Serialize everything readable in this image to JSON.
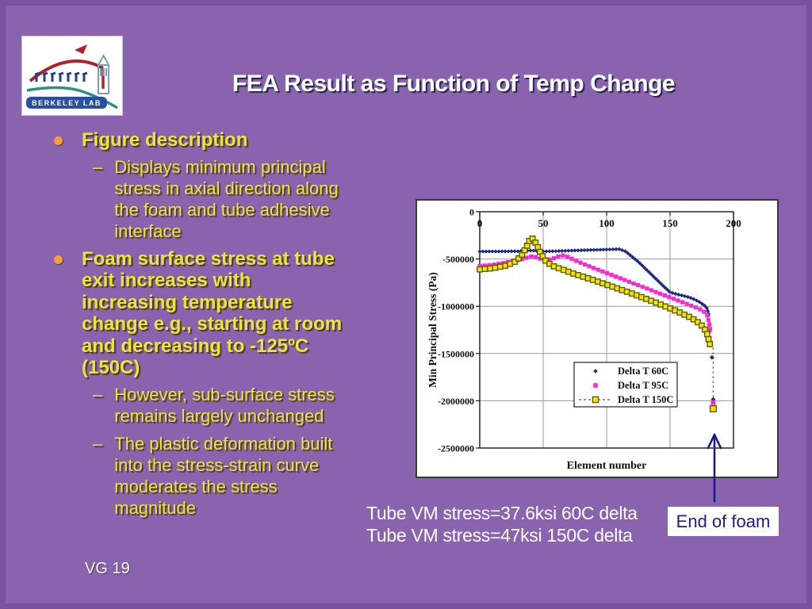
{
  "slide": {
    "title": "FEA Result as Function of Temp Change",
    "footer": "VG 19",
    "logo": {
      "label": "BERKELEY LAB"
    },
    "bullet_markers": {
      "dash": "–"
    },
    "bullets": [
      {
        "level": 1,
        "text": "Figure description"
      },
      {
        "level": 2,
        "text": "Displays minimum principal stress in axial direction along the foam and tube adhesive interface"
      },
      {
        "level": 1,
        "text": "Foam surface stress at tube exit increases with increasing temperature change e.g., starting at room and decreasing to -125ºC (150C)"
      },
      {
        "level": 2,
        "text": "However, sub-surface stress remains largely unchanged"
      },
      {
        "level": 2,
        "text": "The plastic deformation built into the stress-strain curve moderates the stress magnitude"
      }
    ],
    "captions": {
      "line1": "Tube VM stress=37.6ksi 60C delta",
      "line2": "Tube VM stress=47ksi 150C delta",
      "callout": "End of foam"
    }
  },
  "chart_data": {
    "type": "line",
    "title": "",
    "xlabel": "Element number",
    "ylabel": "Min Principal Stress (Pa)",
    "xlim": [
      0,
      200
    ],
    "ylim": [
      -2500000,
      0
    ],
    "xticks": [
      0,
      50,
      100,
      150,
      200
    ],
    "yticks": [
      0,
      -500000,
      -1000000,
      -1500000,
      -2000000,
      -2500000
    ],
    "grid": true,
    "legend_position": "inside-center-right",
    "colors": {
      "grid": "#9a9a9a",
      "axis": "#1a1a1a",
      "drop_dash": "#444444"
    },
    "series": [
      {
        "name": "Delta T 60C",
        "color": "#1c2c82",
        "marker": "diamond",
        "points": [
          [
            0,
            -420000
          ],
          [
            15,
            -420000
          ],
          [
            30,
            -418000
          ],
          [
            40,
            -410000
          ],
          [
            50,
            -420000
          ],
          [
            60,
            -417000
          ],
          [
            75,
            -410000
          ],
          [
            90,
            -404000
          ],
          [
            105,
            -398000
          ],
          [
            110,
            -395000
          ],
          [
            115,
            -420000
          ],
          [
            125,
            -530000
          ],
          [
            135,
            -660000
          ],
          [
            145,
            -790000
          ],
          [
            150,
            -852000
          ],
          [
            155,
            -872000
          ],
          [
            160,
            -888000
          ],
          [
            165,
            -905000
          ],
          [
            170,
            -932000
          ],
          [
            174,
            -962000
          ],
          [
            177,
            -990000
          ],
          [
            179,
            -1020000
          ],
          [
            180,
            -1060000
          ],
          [
            181,
            -1110000
          ]
        ],
        "end_points": [
          [
            183,
            -1540000
          ],
          [
            184,
            -1985000
          ]
        ]
      },
      {
        "name": "Delta T 95C",
        "color": "#fb2bd3",
        "marker": "square",
        "points": [
          [
            0,
            -575000
          ],
          [
            10,
            -562000
          ],
          [
            20,
            -540000
          ],
          [
            30,
            -512000
          ],
          [
            38,
            -482000
          ],
          [
            42,
            -468000
          ],
          [
            47,
            -495000
          ],
          [
            52,
            -512000
          ],
          [
            57,
            -500000
          ],
          [
            62,
            -472000
          ],
          [
            66,
            -462000
          ],
          [
            70,
            -480000
          ],
          [
            76,
            -520000
          ],
          [
            84,
            -565000
          ],
          [
            92,
            -607000
          ],
          [
            100,
            -648000
          ],
          [
            110,
            -700000
          ],
          [
            120,
            -752000
          ],
          [
            130,
            -803000
          ],
          [
            140,
            -855000
          ],
          [
            150,
            -907000
          ],
          [
            158,
            -948000
          ],
          [
            166,
            -990000
          ],
          [
            172,
            -1022000
          ],
          [
            176,
            -1048000
          ],
          [
            179,
            -1085000
          ],
          [
            180,
            -1130000
          ],
          [
            181,
            -1200000
          ],
          [
            182,
            -1280000
          ]
        ],
        "end_points": [
          [
            184,
            -2020000
          ]
        ]
      },
      {
        "name": "Delta T 150C",
        "color": "#f2e600",
        "outline": "#5f5c00",
        "marker": "open-square",
        "dashed": true,
        "points": [
          [
            0,
            -610000
          ],
          [
            10,
            -598000
          ],
          [
            20,
            -572000
          ],
          [
            28,
            -528000
          ],
          [
            33,
            -462000
          ],
          [
            37,
            -370000
          ],
          [
            40,
            -280000
          ],
          [
            42,
            -285000
          ],
          [
            45,
            -350000
          ],
          [
            48,
            -440000
          ],
          [
            52,
            -520000
          ],
          [
            56,
            -562000
          ],
          [
            60,
            -588000
          ],
          [
            66,
            -615000
          ],
          [
            74,
            -655000
          ],
          [
            82,
            -690000
          ],
          [
            90,
            -725000
          ],
          [
            100,
            -772000
          ],
          [
            110,
            -818000
          ],
          [
            120,
            -866000
          ],
          [
            130,
            -916000
          ],
          [
            140,
            -968000
          ],
          [
            150,
            -1022000
          ],
          [
            158,
            -1068000
          ],
          [
            165,
            -1112000
          ],
          [
            170,
            -1150000
          ],
          [
            174,
            -1190000
          ],
          [
            177,
            -1235000
          ],
          [
            179,
            -1285000
          ],
          [
            180,
            -1330000
          ],
          [
            181,
            -1385000
          ],
          [
            182,
            -1430000
          ]
        ],
        "end_points": [
          [
            184,
            -2085000
          ]
        ]
      }
    ],
    "end_drop_line": {
      "x": 184,
      "from": -1440000,
      "to": -1980000
    },
    "annotation_arrow": {
      "points_at_element": 184,
      "label": "End of foam"
    }
  }
}
